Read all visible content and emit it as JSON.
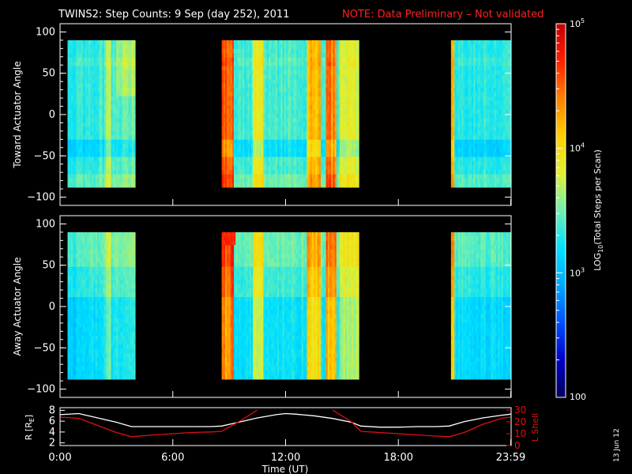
{
  "title": {
    "main": "TWINS2: Step Counts:  9 Sep (day 252), 2011",
    "note": "NOTE: Data Preliminary – Not validated",
    "note_color": "#ff2020"
  },
  "footer_stamp": "13 Jun 12",
  "chart_data": [
    {
      "type": "heatmap",
      "name": "toward-panel",
      "ylabel": "Toward Actuator Angle",
      "ylim": [
        -110,
        110
      ],
      "yticks": [
        100,
        50,
        0,
        -50,
        -100
      ],
      "x_range_hours": [
        0,
        24
      ],
      "data_extent_deg": [
        -88,
        90
      ],
      "data_blocks_hours": [
        [
          0.4,
          4.0
        ],
        [
          8.6,
          15.9
        ],
        [
          20.8,
          24.0
        ]
      ],
      "scale": "log",
      "vmin": 100,
      "vmax": 100000
    },
    {
      "type": "heatmap",
      "name": "away-panel",
      "ylabel": "Away Actuator Angle",
      "ylim": [
        -110,
        110
      ],
      "yticks": [
        100,
        50,
        0,
        -50,
        -100
      ],
      "x_range_hours": [
        0,
        24
      ],
      "data_extent_deg": [
        -88,
        90
      ],
      "data_blocks_hours": [
        [
          0.4,
          4.0
        ],
        [
          8.6,
          15.9
        ],
        [
          20.8,
          24.0
        ]
      ],
      "scale": "log",
      "vmin": 100,
      "vmax": 100000
    },
    {
      "type": "line",
      "name": "orbit-panel",
      "x_hours": [
        0,
        1,
        2,
        3,
        3.8,
        5,
        6,
        7,
        8,
        8.6,
        9.5,
        10.5,
        11.5,
        12,
        12.5,
        13.5,
        14.5,
        15.5,
        16,
        17,
        18,
        19,
        20,
        20.7,
        21.5,
        22.5,
        23.5,
        24
      ],
      "series": [
        {
          "name": "R",
          "axis": "left",
          "color": "#ffffff",
          "values": [
            7.2,
            7.4,
            6.6,
            5.8,
            5.0,
            5.0,
            5.0,
            5.0,
            5.0,
            5.1,
            5.8,
            6.6,
            7.2,
            7.4,
            7.3,
            7.0,
            6.5,
            5.8,
            5.1,
            4.9,
            4.9,
            5.0,
            5.0,
            5.1,
            5.9,
            6.6,
            7.1,
            7.3
          ]
        },
        {
          "name": "L Shell",
          "axis": "right",
          "color": "#e01010",
          "values": [
            24,
            23,
            17,
            11,
            7.5,
            9,
            10,
            11,
            11.5,
            12,
            20,
            30,
            null,
            null,
            null,
            null,
            30,
            20,
            12,
            11,
            10,
            9,
            8,
            7.5,
            11,
            18,
            23,
            24
          ]
        }
      ],
      "ylabel_left": "R [Rₑ]",
      "ylabel_left_base": "R [R",
      "ylabel_left_sub": "E",
      "ylabel_left_close": "]",
      "ylim_left": [
        1.5,
        8.5
      ],
      "yticks_left": [
        8,
        6,
        4,
        2
      ],
      "ylabel_right": "L Shell",
      "ylim_right": [
        0,
        32
      ],
      "yticks_right": [
        30,
        20,
        10,
        0
      ],
      "xlabel": "Time (UT)",
      "xticks": [
        {
          "hour": 0,
          "label": "0:00"
        },
        {
          "hour": 6,
          "label": "6:00"
        },
        {
          "hour": 12,
          "label": "12:00"
        },
        {
          "hour": 18,
          "label": "18:00"
        },
        {
          "hour": 23.98,
          "label": "23:59"
        }
      ]
    }
  ],
  "colorbar": {
    "label": "LOG10(Total Steps per Scan)",
    "label_pre": "LOG",
    "label_sub": "10",
    "label_post": "(Total Steps per Scan)",
    "ticks": [
      {
        "value": 100000,
        "base": "10",
        "exp": "5"
      },
      {
        "value": 10000,
        "base": "10",
        "exp": "4"
      },
      {
        "value": 1000,
        "base": "10",
        "exp": "3"
      },
      {
        "value": 100,
        "base": "100",
        "exp": ""
      }
    ],
    "colors": [
      "#00005a",
      "#0000c8",
      "#0050ff",
      "#00a8ff",
      "#00e0ff",
      "#70f0b0",
      "#e0f030",
      "#ffd000",
      "#ff8000",
      "#ff2000",
      "#c00000"
    ]
  }
}
